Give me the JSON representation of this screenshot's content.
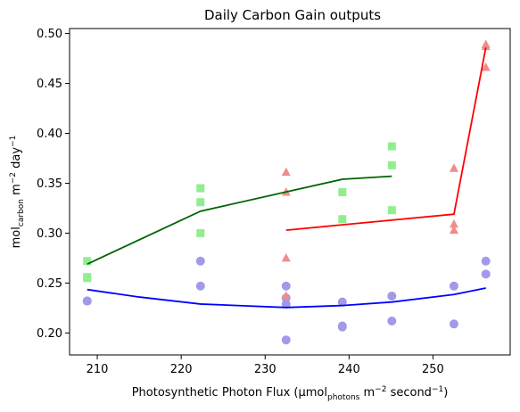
{
  "chart_data": {
    "type": "scatter",
    "title": "Daily Carbon Gain outputs",
    "xlabel": {
      "prefix": "Photosynthetic Photon Flux (µmol",
      "sub": "photons",
      "mid": " m",
      "sup1": "−2",
      "mid2": " second",
      "sup2": "−1",
      "suffix": ")"
    },
    "ylabel": {
      "prefix": "mol",
      "sub": "carbon",
      "mid": " m",
      "sup1": "−2",
      "mid2": " day",
      "sup2": "−1"
    },
    "xlim": [
      206.7,
      259.2
    ],
    "ylim": [
      0.178,
      0.505
    ],
    "xticks": [
      210,
      220,
      230,
      240,
      250
    ],
    "xtick_labels": [
      "210",
      "220",
      "230",
      "240",
      "250"
    ],
    "yticks": [
      0.2,
      0.25,
      0.3,
      0.35,
      0.4,
      0.45,
      0.5
    ],
    "ytick_labels": [
      "0.20",
      "0.25",
      "0.30",
      "0.35",
      "0.40",
      "0.45",
      "0.50"
    ],
    "grid": false,
    "series": [
      {
        "marker": "circle",
        "color": "#a09ae8",
        "line_color": "#0000ff",
        "points": [
          [
            208.8,
            0.232
          ],
          [
            208.8,
            0.232
          ],
          [
            222.3,
            0.272
          ],
          [
            222.3,
            0.247
          ],
          [
            232.5,
            0.247
          ],
          [
            232.5,
            0.235
          ],
          [
            232.5,
            0.229
          ],
          [
            232.5,
            0.193
          ],
          [
            239.2,
            0.231
          ],
          [
            239.2,
            0.207
          ],
          [
            239.2,
            0.206
          ],
          [
            245.1,
            0.237
          ],
          [
            245.1,
            0.212
          ],
          [
            252.5,
            0.247
          ],
          [
            252.5,
            0.209
          ],
          [
            256.3,
            0.272
          ],
          [
            256.3,
            0.259
          ]
        ],
        "fit": [
          [
            208.8,
            0.2435
          ],
          [
            215.0,
            0.236
          ],
          [
            222.3,
            0.229
          ],
          [
            232.5,
            0.2255
          ],
          [
            239.2,
            0.2275
          ],
          [
            245.1,
            0.231
          ],
          [
            252.5,
            0.2385
          ],
          [
            256.3,
            0.245
          ]
        ]
      },
      {
        "marker": "square",
        "color": "#90ee90",
        "line_color": "#006400",
        "points": [
          [
            208.8,
            0.272
          ],
          [
            208.8,
            0.255
          ],
          [
            208.8,
            0.256
          ],
          [
            222.3,
            0.345
          ],
          [
            222.3,
            0.331
          ],
          [
            222.3,
            0.3
          ],
          [
            239.2,
            0.341
          ],
          [
            239.2,
            0.314
          ],
          [
            245.1,
            0.387
          ],
          [
            245.1,
            0.368
          ],
          [
            245.1,
            0.323
          ]
        ],
        "fit": [
          [
            208.8,
            0.269
          ],
          [
            222.3,
            0.322
          ],
          [
            239.2,
            0.354
          ],
          [
            245.1,
            0.357
          ]
        ]
      },
      {
        "marker": "triangle",
        "color": "#f08c8c",
        "line_color": "#ff0000",
        "points": [
          [
            232.5,
            0.361
          ],
          [
            232.5,
            0.341
          ],
          [
            232.5,
            0.275
          ],
          [
            232.5,
            0.237
          ],
          [
            252.5,
            0.365
          ],
          [
            252.5,
            0.309
          ],
          [
            252.5,
            0.303
          ],
          [
            256.3,
            0.489
          ],
          [
            256.3,
            0.487
          ],
          [
            256.3,
            0.466
          ]
        ],
        "fit": [
          [
            232.5,
            0.303
          ],
          [
            252.5,
            0.319
          ],
          [
            256.3,
            0.486
          ]
        ]
      }
    ]
  }
}
